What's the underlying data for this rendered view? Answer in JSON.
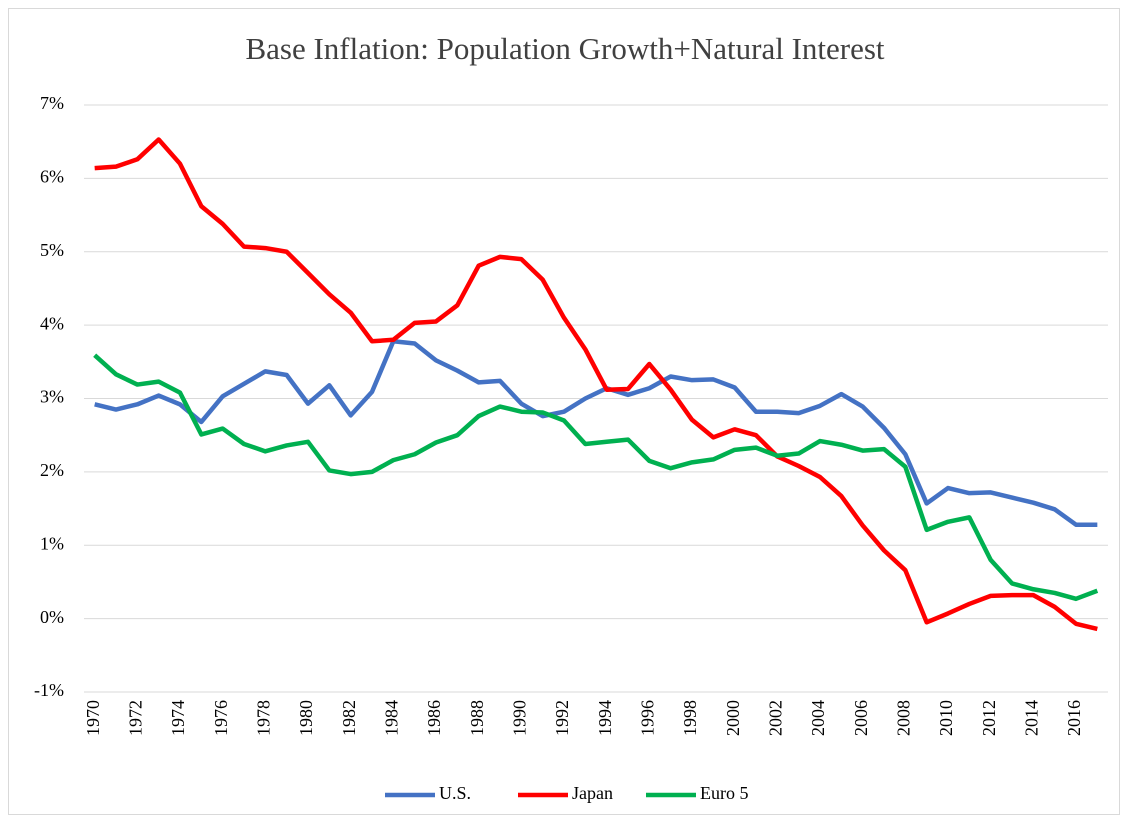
{
  "chart_data": {
    "type": "line",
    "title": "Base Inflation: Population Growth+Natural Interest",
    "categories": [
      "1970",
      null,
      "1972",
      null,
      "1974",
      null,
      "1976",
      null,
      "1978",
      null,
      "1980",
      null,
      "1982",
      null,
      "1984",
      null,
      "1986",
      null,
      "1988",
      null,
      "1990",
      null,
      "1992",
      null,
      "1994",
      null,
      "1996",
      null,
      "1998",
      null,
      "2000",
      null,
      "2002",
      null,
      "2004",
      null,
      "2006",
      null,
      "2008",
      null,
      "2010",
      null,
      "2012",
      null,
      "2014",
      null,
      "2016",
      null
    ],
    "series": [
      {
        "name": "U.S.",
        "color": "#4472c4",
        "values": [
          2.92,
          2.85,
          2.92,
          3.04,
          2.92,
          2.68,
          3.03,
          3.2,
          3.37,
          3.32,
          2.93,
          3.18,
          2.77,
          3.09,
          3.78,
          3.75,
          3.52,
          3.38,
          3.22,
          3.24,
          2.93,
          2.76,
          2.82,
          3.0,
          3.14,
          3.05,
          3.14,
          3.3,
          3.25,
          3.26,
          3.15,
          2.82,
          2.82,
          2.8,
          2.9,
          3.06,
          2.89,
          2.6,
          2.24,
          1.57,
          1.78,
          1.71,
          1.72,
          1.65,
          1.58,
          1.49,
          1.28,
          1.28
        ]
      },
      {
        "name": "Japan",
        "color": "#ff0000",
        "values": [
          6.14,
          6.16,
          6.26,
          6.53,
          6.2,
          5.62,
          5.38,
          5.07,
          5.05,
          5.0,
          4.71,
          4.42,
          4.17,
          3.78,
          3.8,
          4.03,
          4.05,
          4.27,
          4.81,
          4.93,
          4.9,
          4.62,
          4.1,
          3.67,
          3.12,
          3.13,
          3.47,
          3.12,
          2.71,
          2.47,
          2.58,
          2.5,
          2.21,
          2.08,
          1.93,
          1.67,
          1.27,
          0.93,
          0.66,
          -0.05,
          0.07,
          0.2,
          0.31,
          0.32,
          0.32,
          0.16,
          -0.07,
          -0.14
        ]
      },
      {
        "name": "Euro 5",
        "color": "#00b050",
        "values": [
          3.59,
          3.33,
          3.19,
          3.23,
          3.08,
          2.51,
          2.59,
          2.38,
          2.28,
          2.36,
          2.41,
          2.02,
          1.97,
          2.0,
          2.16,
          2.24,
          2.4,
          2.5,
          2.76,
          2.89,
          2.82,
          2.81,
          2.7,
          2.38,
          2.41,
          2.44,
          2.15,
          2.05,
          2.13,
          2.17,
          2.3,
          2.33,
          2.22,
          2.25,
          2.42,
          2.37,
          2.29,
          2.31,
          2.07,
          1.21,
          1.32,
          1.38,
          0.8,
          0.48,
          0.4,
          0.35,
          0.27,
          0.38
        ]
      }
    ],
    "ylim": [
      -1,
      7
    ],
    "yticks": [
      {
        "value": -1,
        "label": "-1%"
      },
      {
        "value": 0,
        "label": "0%"
      },
      {
        "value": 1,
        "label": "1%"
      },
      {
        "value": 2,
        "label": "2%"
      },
      {
        "value": 3,
        "label": "3%"
      },
      {
        "value": 4,
        "label": "4%"
      },
      {
        "value": 5,
        "label": "5%"
      },
      {
        "value": 6,
        "label": "6%"
      },
      {
        "value": 7,
        "label": "7%"
      }
    ],
    "grid": true,
    "legend": "bottom"
  }
}
